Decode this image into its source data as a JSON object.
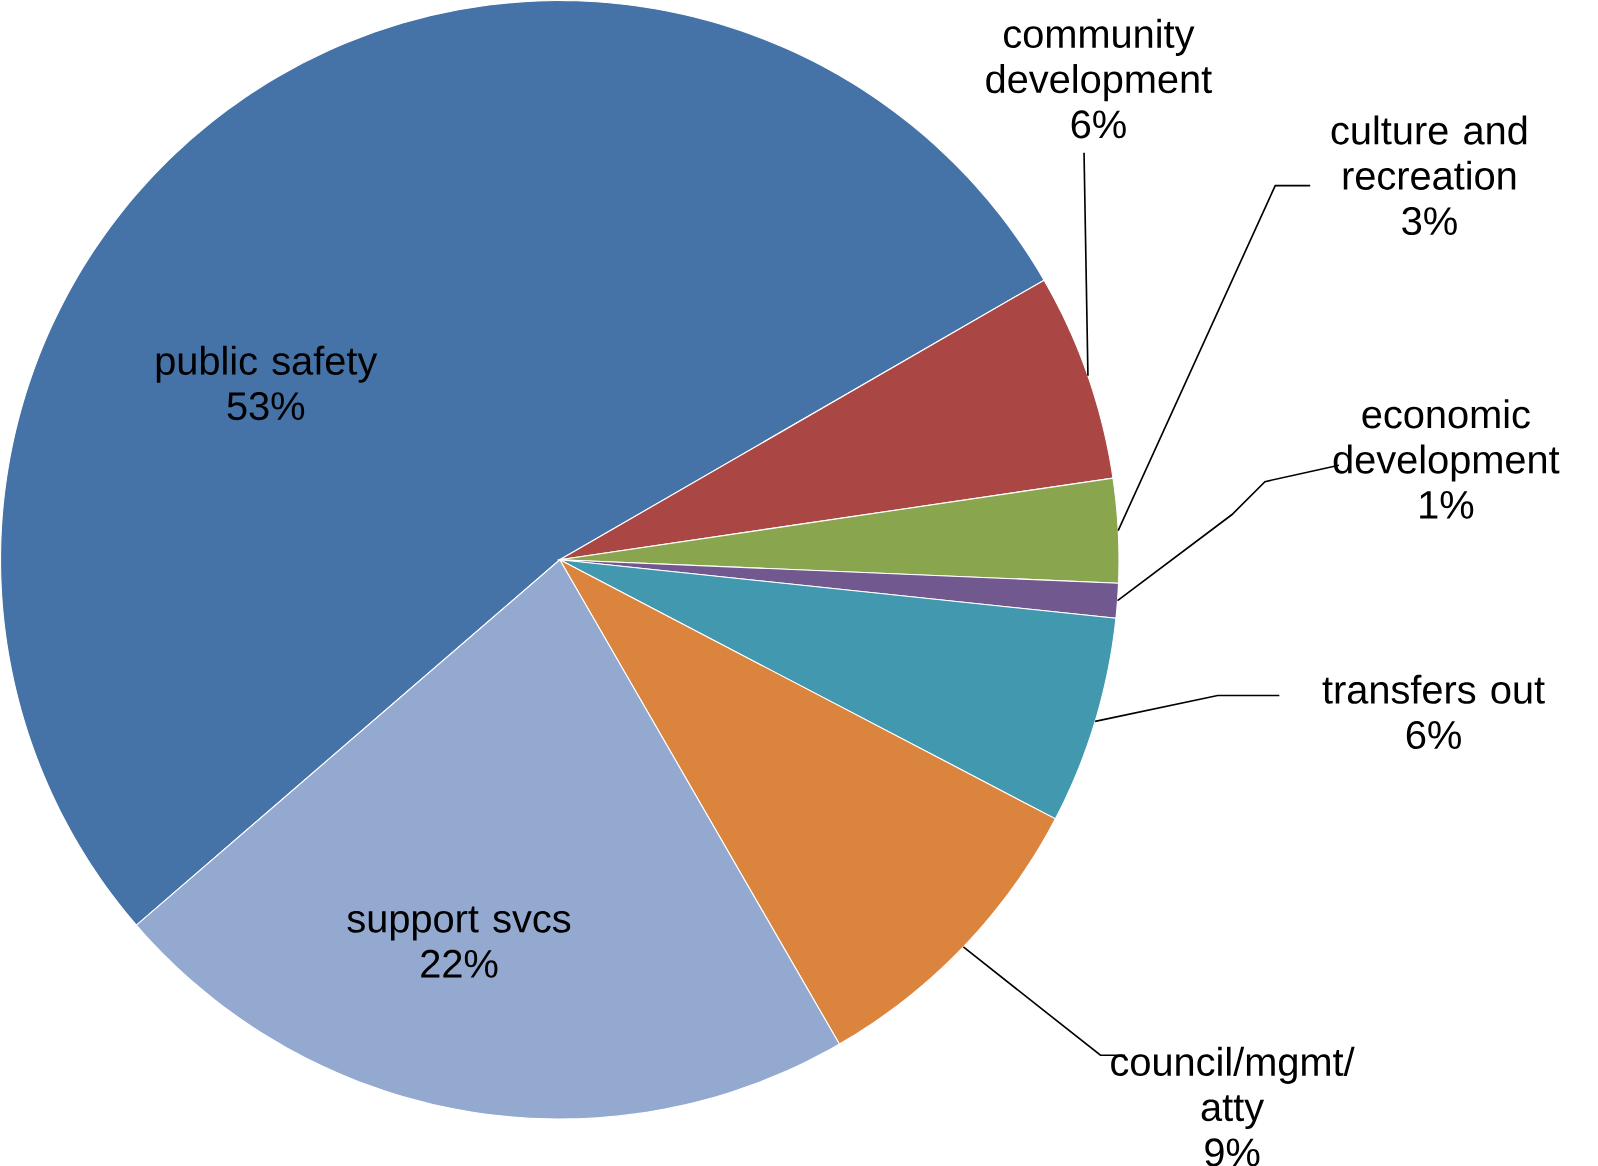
{
  "chart_data": {
    "type": "pie",
    "categories": [
      "public safety",
      "community development",
      "culture and recreation",
      "economic development",
      "transfers out",
      "council/mgmt/ atty",
      "support svcs"
    ],
    "values": [
      53,
      6,
      3,
      1,
      6,
      9,
      22
    ],
    "value_labels": [
      "53%",
      "6%",
      "3%",
      "1%",
      "6%",
      "9%",
      "22%"
    ],
    "colors": [
      "#4572a7",
      "#aa4643",
      "#89a54e",
      "#71588f",
      "#4198af",
      "#db843d",
      "#93a9cf"
    ]
  }
}
